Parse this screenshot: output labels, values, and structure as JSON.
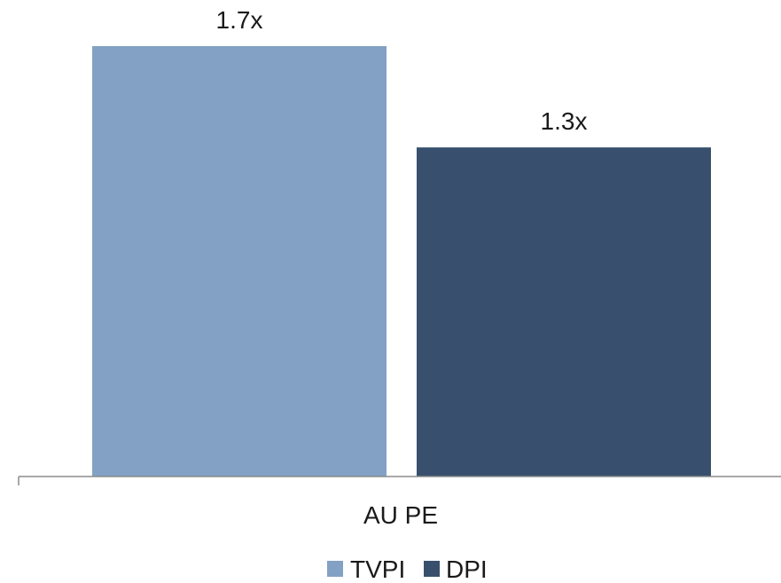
{
  "chart_data": {
    "type": "bar",
    "categories": [
      "AU PE"
    ],
    "series": [
      {
        "name": "TVPI",
        "values": [
          1.7
        ],
        "color": "#82a1c4",
        "label": "1.7x"
      },
      {
        "name": "DPI",
        "values": [
          1.3
        ],
        "color": "#38506d",
        "label": "1.3x"
      }
    ],
    "title": "",
    "xlabel": "",
    "ylabel": "",
    "ylim": [
      0,
      1.7
    ],
    "grid": false,
    "legend": "bottom-center"
  }
}
